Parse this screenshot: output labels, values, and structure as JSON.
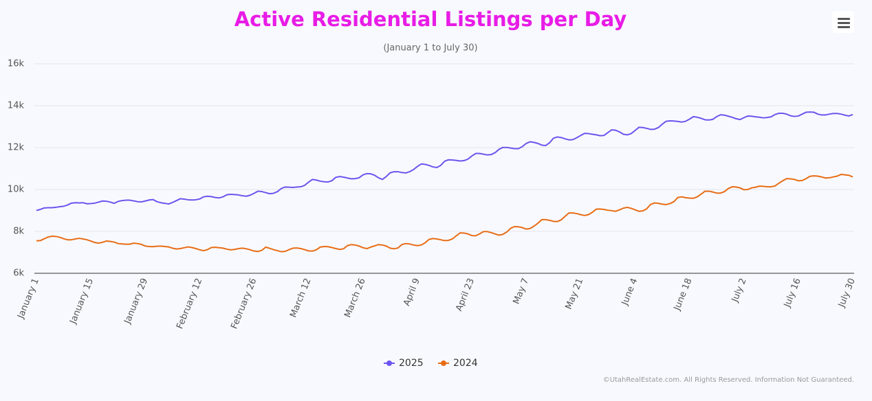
{
  "chart_data": {
    "type": "line",
    "title": "Active Residential Listings per Day",
    "subtitle": "(January 1 to July 30)",
    "credits": "©UtahRealEstate.com. All Rights Reserved. Information Not Guaranteed.",
    "categories": [
      "January 1",
      null,
      null,
      null,
      null,
      null,
      null,
      null,
      null,
      null,
      null,
      null,
      null,
      null,
      "January 15",
      null,
      null,
      null,
      null,
      null,
      null,
      null,
      null,
      null,
      null,
      null,
      null,
      null,
      "January 29",
      null,
      null,
      null,
      null,
      null,
      null,
      null,
      null,
      null,
      null,
      null,
      null,
      null,
      "February 12",
      null,
      null,
      null,
      null,
      null,
      null,
      null,
      null,
      null,
      null,
      null,
      null,
      null,
      "February 26",
      null,
      null,
      null,
      null,
      null,
      null,
      null,
      null,
      null,
      null,
      null,
      null,
      null,
      "March 12",
      null,
      null,
      null,
      null,
      null,
      null,
      null,
      null,
      null,
      null,
      null,
      null,
      null,
      "March 26",
      null,
      null,
      null,
      null,
      null,
      null,
      null,
      null,
      null,
      null,
      null,
      null,
      null,
      "April 9",
      null,
      null,
      null,
      null,
      null,
      null,
      null,
      null,
      null,
      null,
      null,
      null,
      null,
      "April 23",
      null,
      null,
      null,
      null,
      null,
      null,
      null,
      null,
      null,
      null,
      null,
      null,
      null,
      "May 7",
      null,
      null,
      null,
      null,
      null,
      null,
      null,
      null,
      null,
      null,
      null,
      null,
      null,
      "May 21",
      null,
      null,
      null,
      null,
      null,
      null,
      null,
      null,
      null,
      null,
      null,
      null,
      null,
      "June 4",
      null,
      null,
      null,
      null,
      null,
      null,
      null,
      null,
      null,
      null,
      null,
      null,
      null,
      "June 18",
      null,
      null,
      null,
      null,
      null,
      null,
      null,
      null,
      null,
      null,
      null,
      null,
      null,
      "July 2",
      null,
      null,
      null,
      null,
      null,
      null,
      null,
      null,
      null,
      null,
      null,
      null,
      null,
      "July 16",
      null,
      null,
      null,
      null,
      null,
      null,
      null,
      null,
      null,
      null,
      null,
      null,
      null,
      "July 30"
    ],
    "series": [
      {
        "name": "2025",
        "color": "#6a55ee",
        "values": [
          9000,
          9050,
          9120,
          9130,
          9130,
          9150,
          9180,
          9200,
          9260,
          9350,
          9370,
          9360,
          9370,
          9320,
          9330,
          9350,
          9400,
          9450,
          9440,
          9400,
          9340,
          9430,
          9470,
          9490,
          9490,
          9460,
          9420,
          9410,
          9450,
          9500,
          9520,
          9420,
          9370,
          9340,
          9310,
          9380,
          9470,
          9560,
          9540,
          9510,
          9500,
          9510,
          9550,
          9650,
          9680,
          9660,
          9620,
          9600,
          9650,
          9750,
          9770,
          9760,
          9740,
          9700,
          9680,
          9730,
          9820,
          9920,
          9900,
          9850,
          9800,
          9820,
          9900,
          10050,
          10120,
          10110,
          10100,
          10120,
          10130,
          10200,
          10350,
          10480,
          10450,
          10400,
          10370,
          10360,
          10420,
          10580,
          10620,
          10590,
          10550,
          10510,
          10520,
          10560,
          10700,
          10760,
          10750,
          10680,
          10560,
          10480,
          10620,
          10800,
          10850,
          10850,
          10810,
          10790,
          10850,
          10950,
          11100,
          11220,
          11200,
          11150,
          11080,
          11050,
          11150,
          11350,
          11420,
          11410,
          11390,
          11360,
          11380,
          11450,
          11600,
          11720,
          11720,
          11690,
          11650,
          11670,
          11760,
          11920,
          12010,
          12010,
          11980,
          11950,
          11950,
          12050,
          12200,
          12280,
          12250,
          12200,
          12120,
          12100,
          12230,
          12450,
          12510,
          12480,
          12420,
          12370,
          12380,
          12470,
          12580,
          12680,
          12670,
          12640,
          12610,
          12570,
          12580,
          12720,
          12850,
          12830,
          12750,
          12640,
          12610,
          12670,
          12820,
          12970,
          12960,
          12920,
          12870,
          12880,
          12960,
          13120,
          13260,
          13280,
          13270,
          13250,
          13220,
          13260,
          13360,
          13480,
          13450,
          13400,
          13330,
          13320,
          13350,
          13480,
          13570,
          13550,
          13500,
          13450,
          13380,
          13340,
          13430,
          13510,
          13500,
          13470,
          13450,
          13420,
          13440,
          13470,
          13580,
          13640,
          13640,
          13600,
          13520,
          13490,
          13510,
          13600,
          13690,
          13700,
          13690,
          13600,
          13560,
          13560,
          13600,
          13630,
          13630,
          13600,
          13550,
          13510,
          13580
        ]
      },
      {
        "name": "2024",
        "color": "#e86c14",
        "values": [
          7550,
          7560,
          7650,
          7730,
          7770,
          7760,
          7720,
          7650,
          7600,
          7600,
          7640,
          7670,
          7640,
          7600,
          7540,
          7470,
          7440,
          7480,
          7540,
          7520,
          7490,
          7420,
          7400,
          7390,
          7390,
          7440,
          7420,
          7380,
          7300,
          7280,
          7270,
          7290,
          7300,
          7280,
          7260,
          7200,
          7160,
          7180,
          7220,
          7260,
          7230,
          7180,
          7120,
          7080,
          7130,
          7230,
          7240,
          7220,
          7200,
          7150,
          7120,
          7140,
          7180,
          7200,
          7170,
          7120,
          7060,
          7040,
          7100,
          7250,
          7190,
          7130,
          7080,
          7030,
          7050,
          7130,
          7200,
          7210,
          7180,
          7130,
          7070,
          7060,
          7120,
          7250,
          7280,
          7270,
          7230,
          7180,
          7140,
          7170,
          7320,
          7370,
          7350,
          7300,
          7220,
          7180,
          7250,
          7310,
          7370,
          7350,
          7300,
          7200,
          7170,
          7210,
          7370,
          7420,
          7400,
          7350,
          7320,
          7350,
          7460,
          7620,
          7660,
          7640,
          7600,
          7560,
          7570,
          7640,
          7790,
          7930,
          7920,
          7880,
          7800,
          7790,
          7880,
          7990,
          7990,
          7940,
          7880,
          7820,
          7860,
          7970,
          8150,
          8230,
          8220,
          8180,
          8110,
          8140,
          8250,
          8390,
          8560,
          8560,
          8530,
          8480,
          8470,
          8550,
          8720,
          8880,
          8880,
          8850,
          8800,
          8760,
          8800,
          8910,
          9060,
          9070,
          9050,
          9010,
          8990,
          8960,
          9030,
          9110,
          9150,
          9100,
          9030,
          8960,
          8980,
          9080,
          9290,
          9360,
          9340,
          9300,
          9280,
          9330,
          9420,
          9620,
          9650,
          9610,
          9590,
          9580,
          9650,
          9780,
          9920,
          9920,
          9880,
          9830,
          9830,
          9900,
          10050,
          10130,
          10120,
          10080,
          9990,
          10000,
          10080,
          10110,
          10160,
          10150,
          10130,
          10130,
          10170,
          10300,
          10420,
          10520,
          10510,
          10480,
          10420,
          10430,
          10520,
          10630,
          10650,
          10640,
          10600,
          10550,
          10560,
          10600,
          10640,
          10720,
          10700,
          10680,
          10600
        ]
      }
    ],
    "ylim": [
      6000,
      16000
    ],
    "yticks": [
      {
        "value": 6000,
        "label": "6k"
      },
      {
        "value": 8000,
        "label": "8k"
      },
      {
        "value": 10000,
        "label": "10k"
      },
      {
        "value": 12000,
        "label": "12k"
      },
      {
        "value": 14000,
        "label": "14k"
      },
      {
        "value": 16000,
        "label": "16k"
      }
    ],
    "grid": true
  }
}
